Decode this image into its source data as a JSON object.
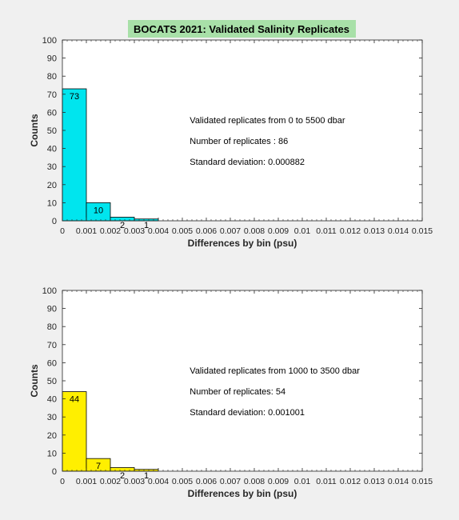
{
  "figure": {
    "title": "BOCATS 2021: Validated Salinity Replicates",
    "title_bg": "#a8e0a8",
    "background": "#f0f0f0"
  },
  "chart_data": [
    {
      "type": "bar",
      "title": "",
      "xlabel": "Differences by bin (psu)",
      "ylabel": "Counts",
      "xlim": [
        0,
        0.015
      ],
      "ylim": [
        0,
        100
      ],
      "bar_color": "#00e5ee",
      "bin_width": 0.001,
      "bins": [
        0,
        0.001,
        0.002,
        0.003
      ],
      "values": [
        73,
        10,
        2,
        1
      ],
      "value_labels": [
        "73",
        "10",
        "2",
        "1"
      ],
      "xticks": [
        "0",
        "0.001",
        "0.002",
        "0.003",
        "0.004",
        "0.005",
        "0.006",
        "0.007",
        "0.008",
        "0.009",
        "0.01",
        "0.011",
        "0.012",
        "0.013",
        "0.014",
        "0.015"
      ],
      "yticks": [
        "0",
        "10",
        "20",
        "30",
        "40",
        "50",
        "60",
        "70",
        "80",
        "90",
        "100"
      ],
      "annotations": [
        "Validated replicates from 0 to 5500 dbar",
        "Number of replicates : 86",
        "Standard deviation: 0.000882"
      ]
    },
    {
      "type": "bar",
      "title": "",
      "xlabel": "Differences by bin (psu)",
      "ylabel": "Counts",
      "xlim": [
        0,
        0.015
      ],
      "ylim": [
        0,
        100
      ],
      "bar_color": "#ffef00",
      "bin_width": 0.001,
      "bins": [
        0,
        0.001,
        0.002,
        0.003
      ],
      "values": [
        44,
        7,
        2,
        1
      ],
      "value_labels": [
        "44",
        "7",
        "2",
        "1"
      ],
      "xticks": [
        "0",
        "0.001",
        "0.002",
        "0.003",
        "0.004",
        "0.005",
        "0.006",
        "0.007",
        "0.008",
        "0.009",
        "0.01",
        "0.011",
        "0.012",
        "0.013",
        "0.014",
        "0.015"
      ],
      "yticks": [
        "0",
        "10",
        "20",
        "30",
        "40",
        "50",
        "60",
        "70",
        "80",
        "90",
        "100"
      ],
      "annotations": [
        "Validated replicates from 1000 to 3500 dbar",
        "Number of replicates: 54",
        "Standard deviation: 0.001001"
      ]
    }
  ]
}
